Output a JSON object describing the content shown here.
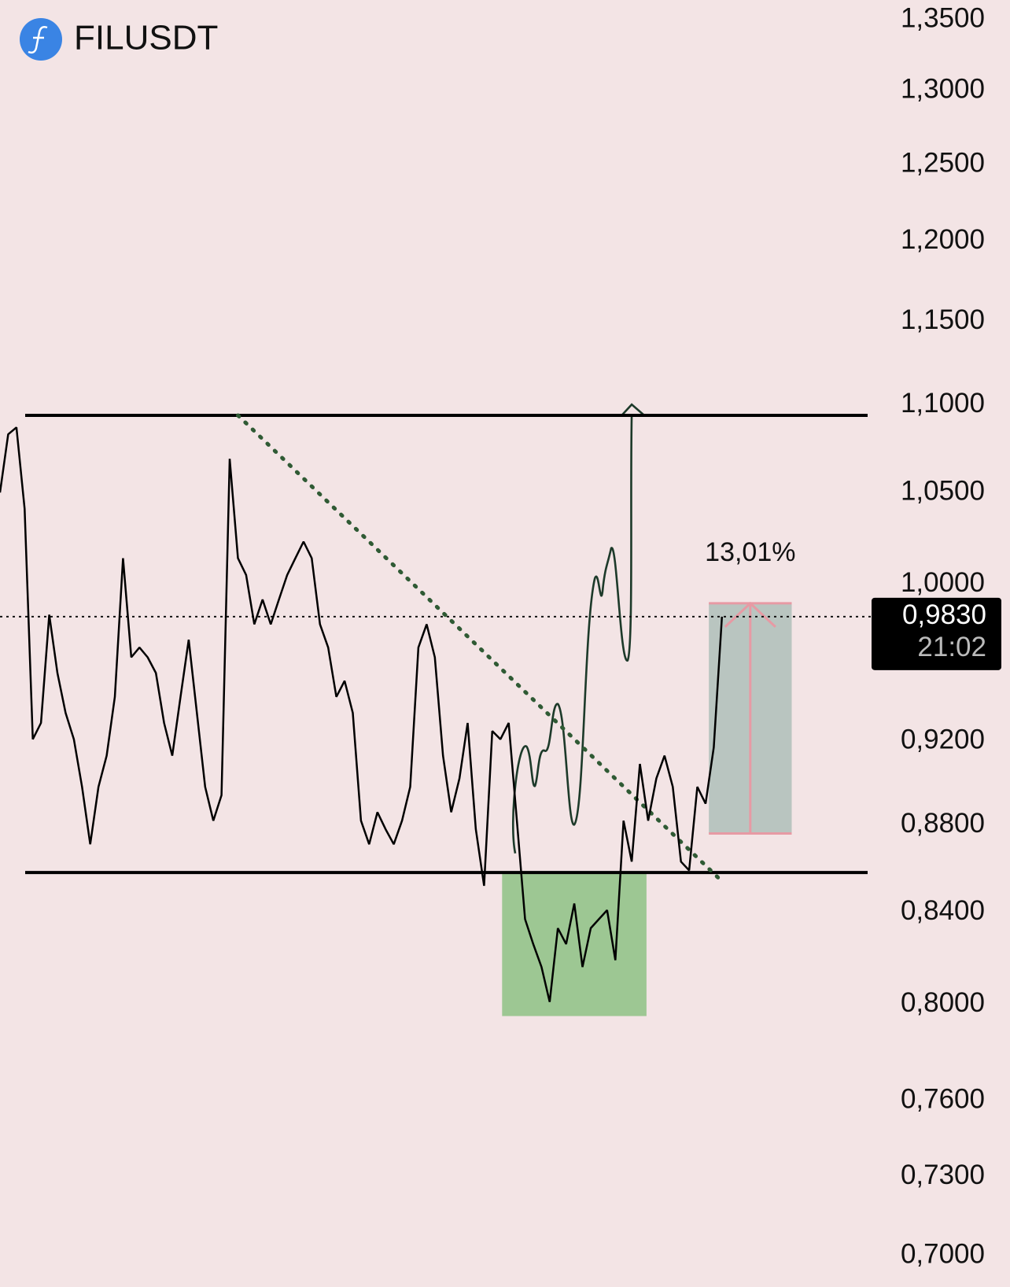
{
  "chart_data": {
    "type": "line",
    "title": "FILUSDT",
    "values": [
      1.05,
      1.083,
      1.087,
      1.041,
      0.921,
      0.929,
      0.984,
      0.954,
      0.934,
      0.921,
      0.898,
      0.871,
      0.898,
      0.913,
      0.942,
      1.014,
      0.962,
      0.967,
      0.962,
      0.954,
      0.929,
      0.913,
      0.942,
      0.971,
      0.934,
      0.898,
      0.882,
      0.894,
      1.069,
      1.014,
      1.005,
      0.979,
      0.992,
      0.979,
      0.992,
      1.005,
      1.014,
      1.023,
      1.014,
      0.979,
      0.967,
      0.942,
      0.95,
      0.934,
      0.882,
      0.871,
      0.886,
      0.878,
      0.871,
      0.882,
      0.898,
      0.967,
      0.979,
      0.962,
      0.913,
      0.886,
      0.902,
      0.929,
      0.878,
      0.852,
      0.925,
      0.921,
      0.929,
      0.882,
      0.837,
      0.826,
      0.816,
      0.801,
      0.833,
      0.826,
      0.844,
      0.816,
      0.833,
      0.837,
      0.841,
      0.819,
      0.882,
      0.863,
      0.909,
      0.882,
      0.902,
      0.913,
      0.898,
      0.863,
      0.859,
      0.898,
      0.89,
      0.917,
      0.983
    ],
    "color": "#000000",
    "log_scale": true,
    "ylim": [
      0.7,
      1.35
    ],
    "yticks": [
      {
        "value": 1.35,
        "label": "1,3500"
      },
      {
        "value": 1.3,
        "label": "1,3000"
      },
      {
        "value": 1.25,
        "label": "1,2500"
      },
      {
        "value": 1.2,
        "label": "1,2000"
      },
      {
        "value": 1.15,
        "label": "1,1500"
      },
      {
        "value": 1.1,
        "label": "1,1000"
      },
      {
        "value": 1.05,
        "label": "1,0500"
      },
      {
        "value": 1.0,
        "label": "1,0000"
      },
      {
        "value": 0.92,
        "label": "0,9200"
      },
      {
        "value": 0.88,
        "label": "0,8800"
      },
      {
        "value": 0.84,
        "label": "0,8400"
      },
      {
        "value": 0.8,
        "label": "0,8000"
      },
      {
        "value": 0.76,
        "label": "0,7600"
      },
      {
        "value": 0.73,
        "label": "0,7300"
      },
      {
        "value": 0.7,
        "label": "0,7000"
      }
    ],
    "grid": false,
    "levels": [
      1.094,
      0.858
    ],
    "trendline": {
      "from": {
        "index": 29,
        "value": 1.094
      },
      "to": {
        "index": 88,
        "value": 0.854
      }
    },
    "zone": {
      "from_index": 61.2,
      "to_index": 78.8,
      "low": 0.795,
      "high": 0.858,
      "color": "#9dc793"
    },
    "measure": {
      "from_index": 86.4,
      "to_index": 96.5,
      "low": 0.876,
      "high": 0.99,
      "value": 13.01,
      "label": "13,01%",
      "color": "#b2c1bb"
    },
    "last_price": {
      "value": 0.983,
      "label": "0,9830"
    },
    "countdown": "21:02"
  }
}
